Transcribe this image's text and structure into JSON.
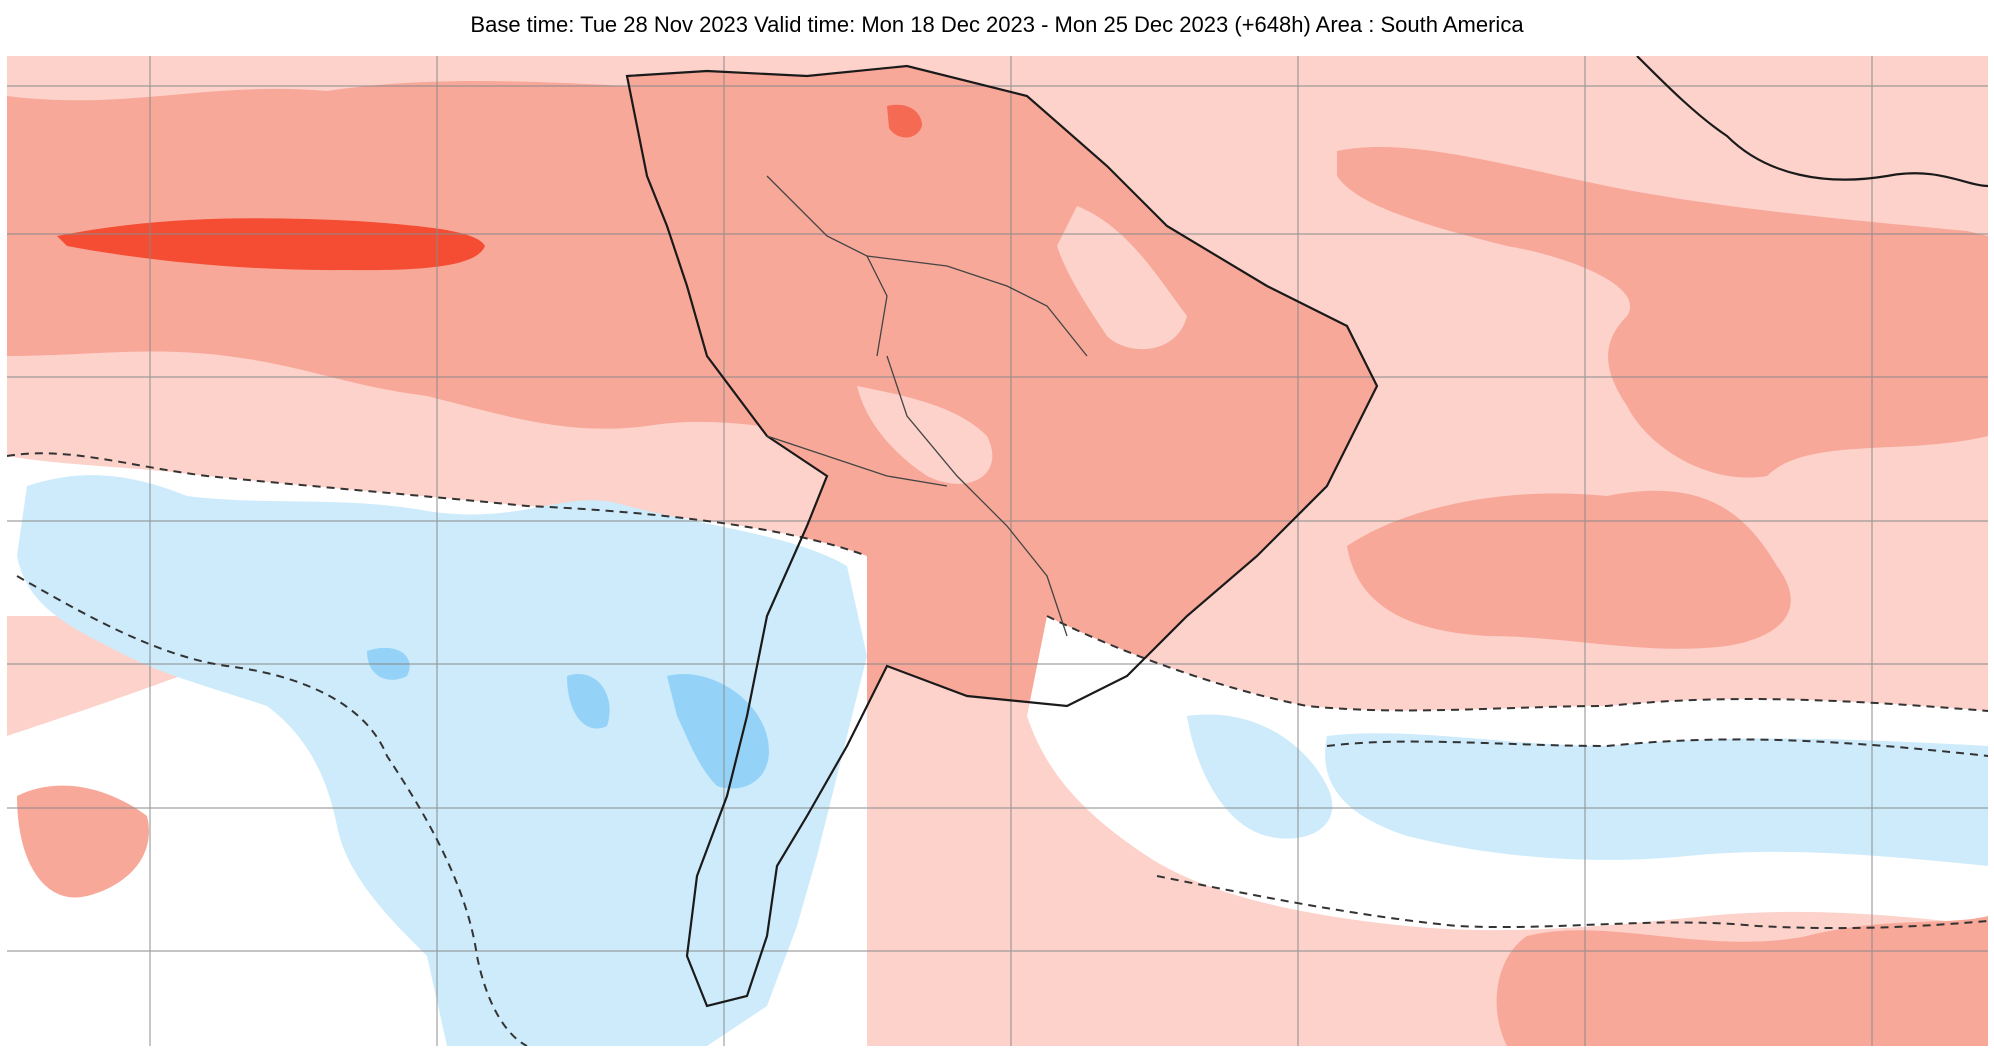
{
  "header": {
    "title": "Base time: Tue 28 Nov 2023 Valid time: Mon 18 Dec 2023 - Mon 25 Dec 2023 (+648h) Area : South America"
  },
  "map": {
    "area": "South America",
    "colors": {
      "ocean_background": "#fcd2cb",
      "warm_anomaly": "#f8a899",
      "strong_warm_anomaly": "#f44d33",
      "moderate_strong_warm": "#f46a52",
      "neutral": "#ffffff",
      "cool_anomaly": "#cdebfb",
      "strong_cool_anomaly": "#94d3f7",
      "grid_lines": "#8a8a8a",
      "coastline": "#1a1a1a",
      "dashed_contour": "#333333"
    },
    "features": {
      "grid": true,
      "coastlines": true,
      "country_borders": true,
      "dashed_zero_contour": true
    }
  }
}
